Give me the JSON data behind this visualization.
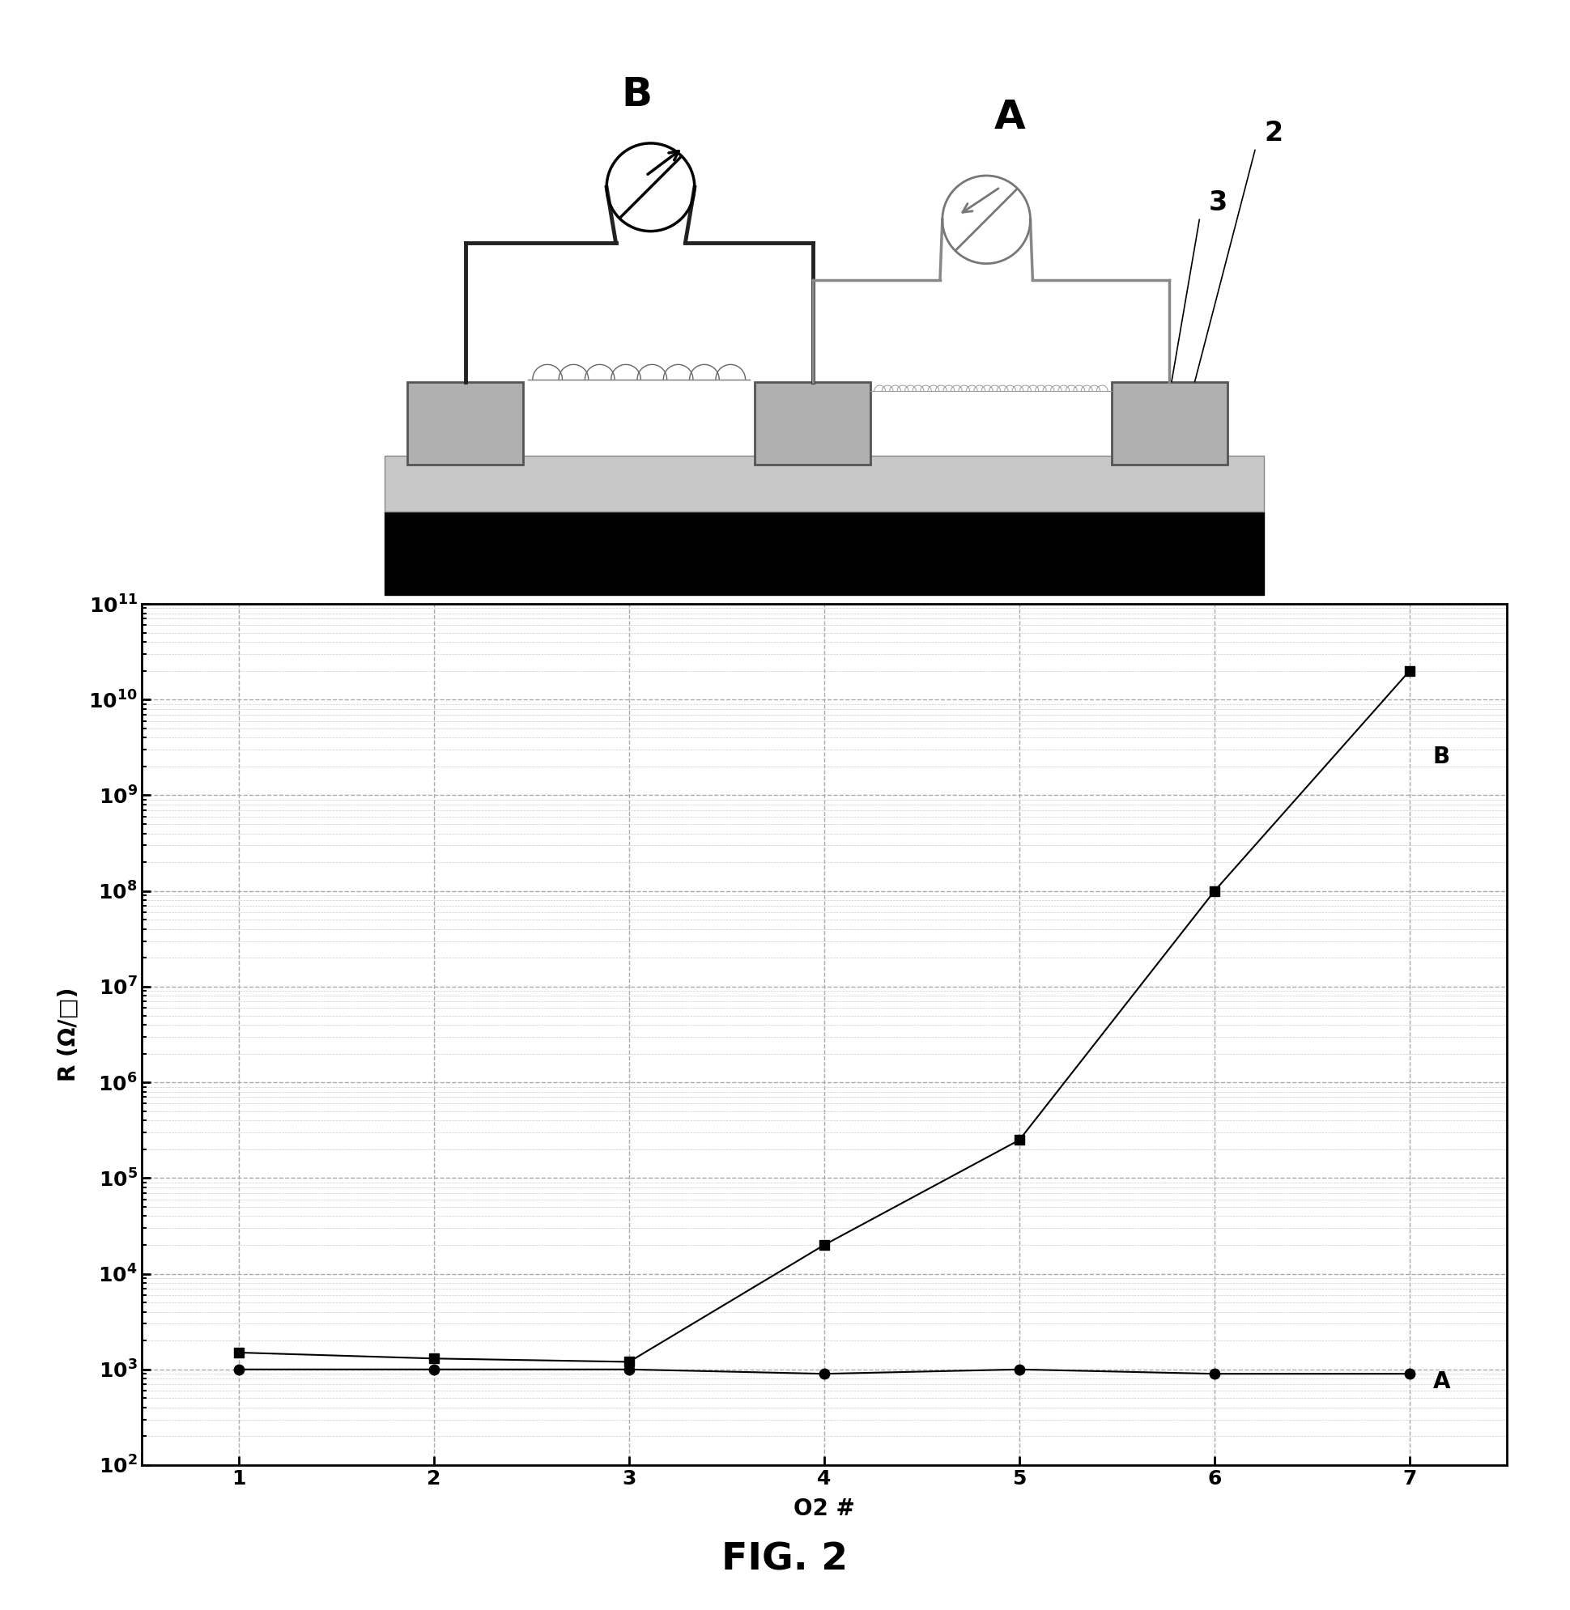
{
  "series_A_x": [
    1,
    2,
    3,
    4,
    5,
    6,
    7
  ],
  "series_A_y": [
    1000,
    1000,
    1000,
    900,
    1000,
    900,
    900
  ],
  "series_B_x": [
    1,
    2,
    3,
    4,
    5,
    6,
    7
  ],
  "series_B_y": [
    1500,
    1300,
    1200,
    20000,
    250000,
    100000000.0,
    20000000000.0
  ],
  "xlabel": "O2 #",
  "ylabel": "R (Ω/□)",
  "fig_label": "FIG. 2",
  "label_A": "A",
  "label_B": "B",
  "ylim_bottom": 100.0,
  "ylim_top": 100000000000.0,
  "xlim_left": 0.5,
  "xlim_right": 7.5,
  "xticks": [
    1,
    2,
    3,
    4,
    5,
    6,
    7
  ],
  "grid_color": "#aaaaaa",
  "line_color": "#000000",
  "bg_color": "#ffffff",
  "marker_A": "o",
  "marker_B": "s",
  "marker_size": 9,
  "line_width": 1.5,
  "wire_color_B": "#222222",
  "wire_color_A": "#888888",
  "electrode_color": "#aaaaaa",
  "sio2_color": "#cccccc",
  "substrate_color": "#000000"
}
